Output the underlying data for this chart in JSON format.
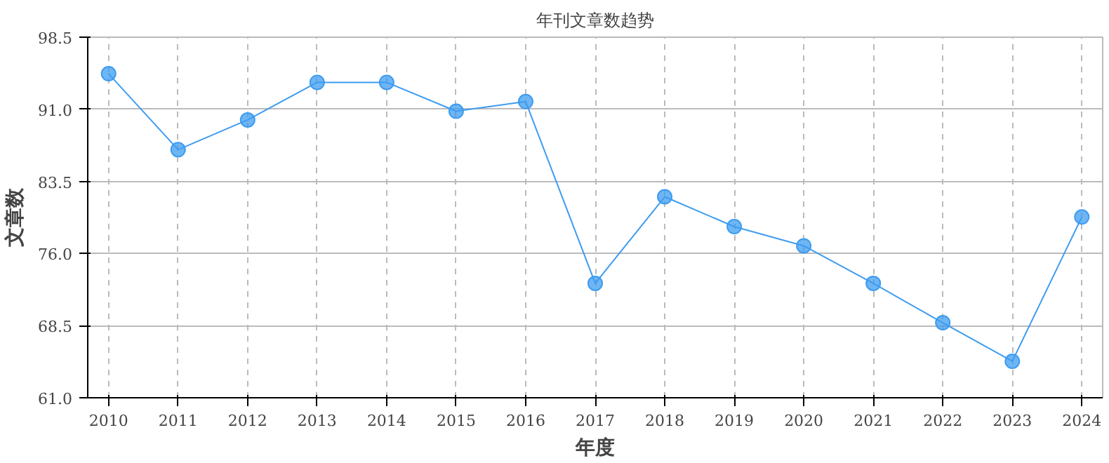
{
  "chart_data": {
    "type": "line",
    "title": "年刊文章数趋势",
    "xlabel": "年度",
    "ylabel": "文章数",
    "categories": [
      "2010",
      "2011",
      "2012",
      "2013",
      "2014",
      "2015",
      "2016",
      "2017",
      "2018",
      "2019",
      "2020",
      "2021",
      "2022",
      "2023",
      "2024"
    ],
    "series": [
      {
        "color": "#3d9cf0",
        "values": [
          94.7,
          86.8,
          89.9,
          93.8,
          93.8,
          90.8,
          91.8,
          72.9,
          81.9,
          78.8,
          76.8,
          72.9,
          68.8,
          64.8,
          79.8
        ]
      }
    ],
    "ylim": [
      61.0,
      98.5
    ],
    "yticks": [
      {
        "value": 61,
        "label": "61.0"
      },
      {
        "value": 68.5,
        "label": "68.5"
      },
      {
        "value": 76,
        "label": "76.0"
      },
      {
        "value": 83.5,
        "label": "83.5"
      },
      {
        "value": 91,
        "label": "91.0"
      },
      {
        "value": 98.5,
        "label": "98.5"
      }
    ],
    "grid": true,
    "marker": "circle",
    "line_style": "solid"
  }
}
